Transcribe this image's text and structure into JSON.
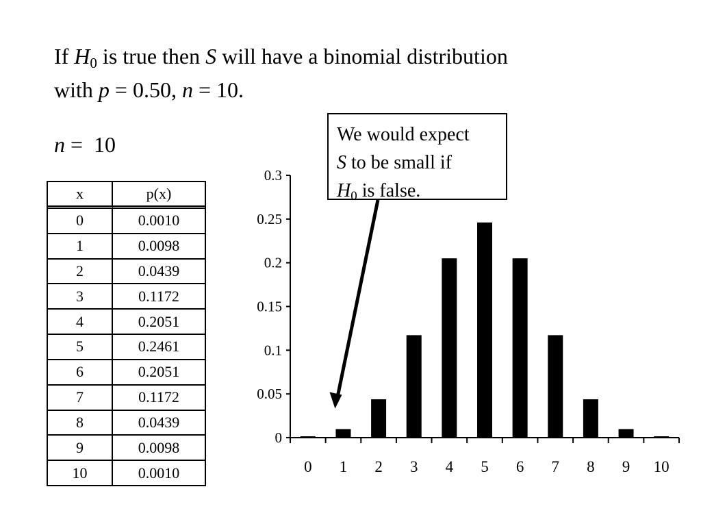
{
  "heading": {
    "if": "If",
    "h": "H",
    "h_sub": "0",
    "part1": "is true then",
    "s": "S",
    "part2": "will have a binomial distribution",
    "part3": "with",
    "p": "p",
    "part4": "= 0.50,",
    "n": "n",
    "part5": "= 10."
  },
  "n_line": {
    "n": "n",
    "equals": "=",
    "value": "10"
  },
  "table": {
    "headers": [
      "x",
      "p(x)"
    ],
    "rows": [
      [
        "0",
        "0.0010"
      ],
      [
        "1",
        "0.0098"
      ],
      [
        "2",
        "0.0439"
      ],
      [
        "3",
        "0.1172"
      ],
      [
        "4",
        "0.2051"
      ],
      [
        "5",
        "0.2461"
      ],
      [
        "6",
        "0.2051"
      ],
      [
        "7",
        "0.1172"
      ],
      [
        "8",
        "0.0439"
      ],
      [
        "9",
        "0.0098"
      ],
      [
        "10",
        "0.0010"
      ]
    ]
  },
  "callout": {
    "line1": "We would expect",
    "s": "S",
    "line2": "to be small if",
    "h": "H",
    "h_sub": "0",
    "line3": "is false."
  },
  "chart_data": {
    "type": "bar",
    "categories": [
      "0",
      "1",
      "2",
      "3",
      "4",
      "5",
      "6",
      "7",
      "8",
      "9",
      "10"
    ],
    "values": [
      0.001,
      0.0098,
      0.0439,
      0.1172,
      0.2051,
      0.2461,
      0.2051,
      0.1172,
      0.0439,
      0.0098,
      0.001
    ],
    "ylim": [
      0,
      0.3
    ],
    "yticks": [
      "0",
      "0.05",
      "0.1",
      "0.15",
      "0.2",
      "0.25",
      "0.3"
    ],
    "ytick_values": [
      0,
      0.05,
      0.1,
      0.15,
      0.2,
      0.25,
      0.3
    ],
    "grid": false,
    "bar_color": "#000000",
    "annotation_arrow_target": "1"
  }
}
